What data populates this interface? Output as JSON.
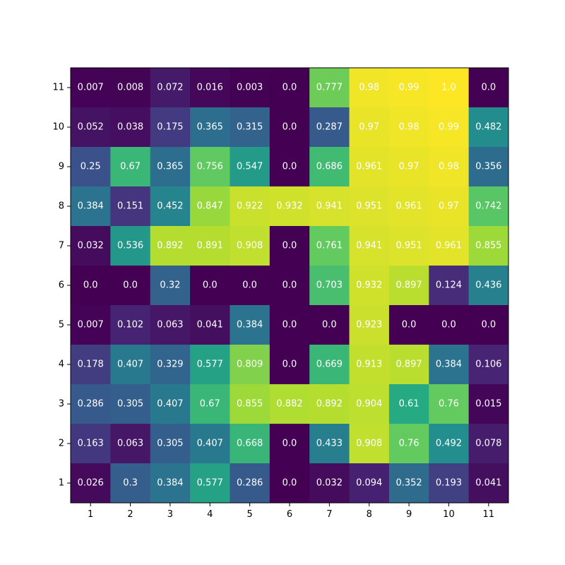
{
  "chart_data": {
    "type": "heatmap",
    "title": "",
    "xlabel": "",
    "ylabel": "",
    "colormap": "viridis",
    "value_range": [
      0,
      1
    ],
    "x_ticks": [
      "1",
      "2",
      "3",
      "4",
      "5",
      "6",
      "7",
      "8",
      "9",
      "10",
      "11"
    ],
    "y_ticks": [
      "1",
      "2",
      "3",
      "4",
      "5",
      "6",
      "7",
      "8",
      "9",
      "10",
      "11"
    ],
    "rows_top_to_bottom": [
      11,
      10,
      9,
      8,
      7,
      6,
      5,
      4,
      3,
      2,
      1
    ],
    "cell_labels": [
      [
        "0.007",
        "0.008",
        "0.072",
        "0.016",
        "0.003",
        "0.0",
        "0.777",
        "0.98",
        "0.99",
        "1.0",
        "0.0"
      ],
      [
        "0.052",
        "0.038",
        "0.175",
        "0.365",
        "0.315",
        "0.0",
        "0.287",
        "0.97",
        "0.98",
        "0.99",
        "0.482"
      ],
      [
        "0.25",
        "0.67",
        "0.365",
        "0.756",
        "0.547",
        "0.0",
        "0.686",
        "0.961",
        "0.97",
        "0.98",
        "0.356"
      ],
      [
        "0.384",
        "0.151",
        "0.452",
        "0.847",
        "0.922",
        "0.932",
        "0.941",
        "0.951",
        "0.961",
        "0.97",
        "0.742"
      ],
      [
        "0.032",
        "0.536",
        "0.892",
        "0.891",
        "0.908",
        "0.0",
        "0.761",
        "0.941",
        "0.951",
        "0.961",
        "0.855"
      ],
      [
        "0.0",
        "0.0",
        "0.32",
        "0.0",
        "0.0",
        "0.0",
        "0.703",
        "0.932",
        "0.897",
        "0.124",
        "0.436"
      ],
      [
        "0.007",
        "0.102",
        "0.063",
        "0.041",
        "0.384",
        "0.0",
        "0.0",
        "0.923",
        "0.0",
        "0.0",
        "0.0"
      ],
      [
        "0.178",
        "0.407",
        "0.329",
        "0.577",
        "0.809",
        "0.0",
        "0.669",
        "0.913",
        "0.897",
        "0.384",
        "0.106"
      ],
      [
        "0.286",
        "0.305",
        "0.407",
        "0.67",
        "0.855",
        "0.882",
        "0.892",
        "0.904",
        "0.61",
        "0.76",
        "0.015"
      ],
      [
        "0.163",
        "0.063",
        "0.305",
        "0.407",
        "0.668",
        "0.0",
        "0.433",
        "0.908",
        "0.76",
        "0.492",
        "0.078"
      ],
      [
        "0.026",
        "0.3",
        "0.384",
        "0.577",
        "0.286",
        "0.0",
        "0.032",
        "0.094",
        "0.352",
        "0.193",
        "0.041"
      ]
    ],
    "grid": false,
    "legend": "none"
  }
}
